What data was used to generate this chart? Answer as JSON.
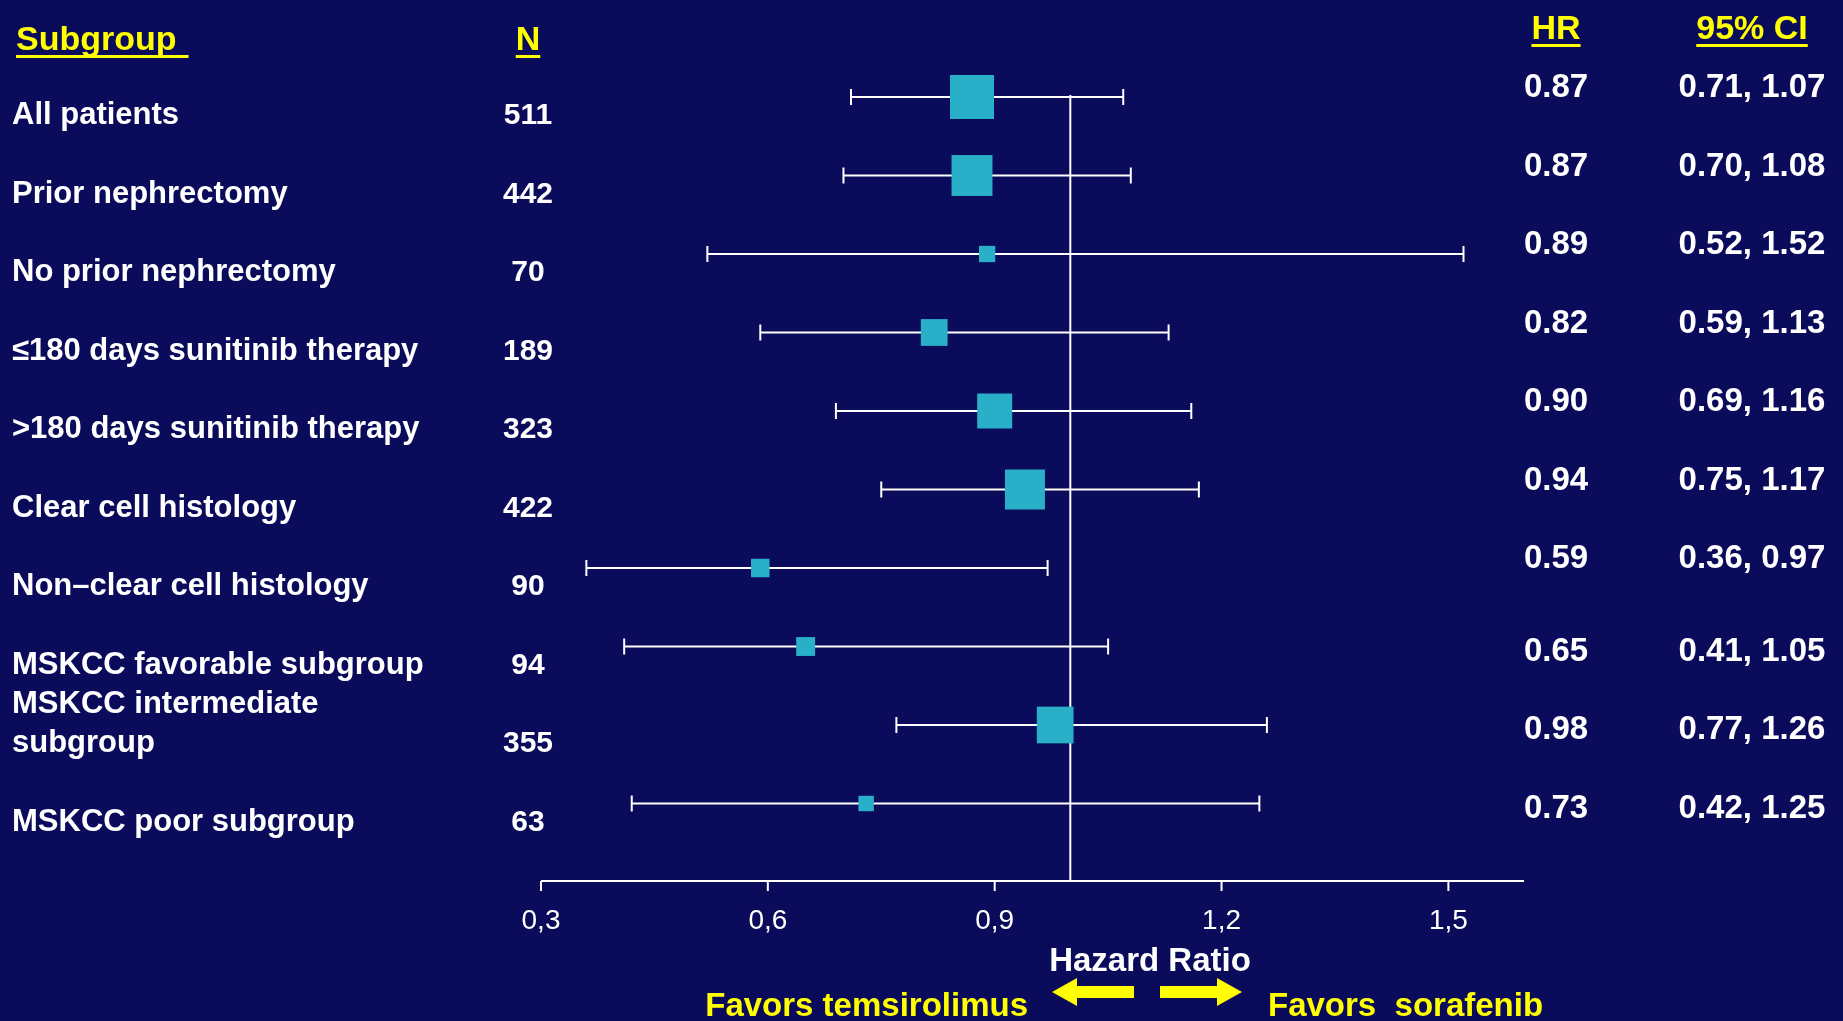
{
  "chart_data": {
    "type": "bubble",
    "orientation": "horizontal",
    "marker": "square",
    "color": "#29b0c8",
    "categories": [
      "All patients",
      "Prior nephrectomy",
      "No prior nephrectomy",
      "≤180 days sunitinib therapy",
      ">180 days sunitinib therapy",
      "Clear cell histology",
      "Non–clear cell histology",
      "MSKCC favorable subgroup",
      "MSKCC intermediate subgroup",
      "MSKCC poor subgroup"
    ],
    "values": [
      0.87,
      0.87,
      0.89,
      0.82,
      0.9,
      0.94,
      0.59,
      0.65,
      0.98,
      0.73
    ],
    "sizes": [
      1,
      0.865,
      0.137,
      0.37,
      0.632,
      0.826,
      0.176,
      0.184,
      0.695,
      0.123
    ],
    "errors": [
      [
        0.71,
        1.07
      ],
      [
        0.7,
        1.08
      ],
      [
        0.52,
        1.52
      ],
      [
        0.59,
        1.13
      ],
      [
        0.69,
        1.16
      ],
      [
        0.75,
        1.17
      ],
      [
        0.36,
        0.97
      ],
      [
        0.41,
        1.05
      ],
      [
        0.77,
        1.26
      ],
      [
        0.42,
        1.25
      ]
    ],
    "value_labels": [
      "0.87",
      "0.87",
      "0.89",
      "0.82",
      "0.90",
      "0.94",
      "0.59",
      "0.65",
      "0.98",
      "0.73"
    ],
    "xlim": [
      0.3,
      1.6
    ],
    "xticks": [
      {
        "value": 0.3,
        "label": "0,3"
      },
      {
        "value": 0.6,
        "label": "0,6"
      },
      {
        "value": 0.9,
        "label": "0,9"
      },
      {
        "value": 1.2,
        "label": "1,2"
      },
      {
        "value": 1.5,
        "label": "1,5"
      }
    ],
    "xlabel": "Hazard Ratio",
    "ref_lines": [
      {
        "axis": "x",
        "value": 1,
        "color": "#ffffff"
      }
    ],
    "annotations": [
      "Subgroup",
      "N",
      "HR",
      "95% CI",
      "Favors temsirolimus",
      "Favors  sorafenib",
      "511",
      "442",
      "70",
      "189",
      "323",
      "422",
      "90",
      "94",
      "355",
      "63",
      "0.71, 1.07",
      "0.70, 1.08",
      "0.52, 1.52",
      "0.59, 1.13",
      "0.69, 1.16",
      "0.75, 1.17",
      "0.36, 0.97",
      "0.41, 1.05",
      "0.77, 1.26",
      "0.42, 1.25"
    ]
  }
}
